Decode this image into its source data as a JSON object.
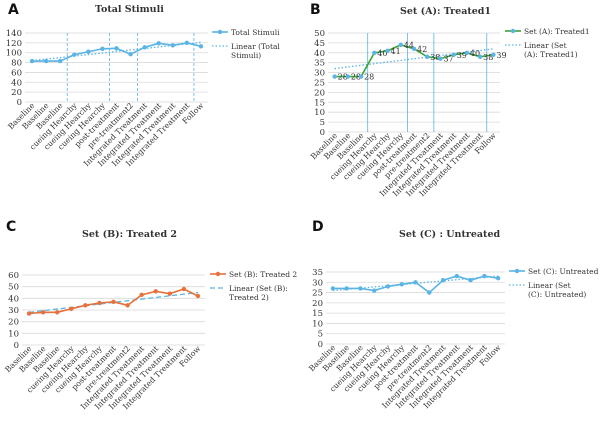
{
  "chart_data": [
    {
      "panel": "A",
      "type": "line",
      "title": "Total Stimuli",
      "categories": [
        "Baseline",
        "Baseline",
        "Baseline",
        "cueing Hearchy",
        "cueing Hearchy",
        "cueing Hearchy",
        "post-treatment",
        "pre-treatment2",
        "Integrated Treatment",
        "Integrated Treatment",
        "Integrated Treatment",
        "Integrated Treatment",
        "Follow"
      ],
      "series": [
        {
          "name": "Total Stimuli",
          "values": [
            83,
            83,
            83,
            96,
            102,
            108,
            109,
            97,
            111,
            119,
            115,
            120,
            113
          ],
          "color": "#5ab4e5"
        }
      ],
      "trendline": {
        "name": "Linear (Total Stimuli)",
        "start": 84,
        "end": 121,
        "color": "#5ab4e5"
      },
      "ylim": [
        0,
        140
      ],
      "yticks": [
        0,
        20,
        40,
        60,
        80,
        100,
        120,
        140
      ],
      "phase_lines_after_index": [
        2,
        5,
        7,
        11
      ],
      "legend_position": "right",
      "data_labels": false
    },
    {
      "panel": "B",
      "type": "line",
      "title": "Set (A): Treated1",
      "categories": [
        "Baseline",
        "Baseline",
        "Baseline",
        "cueing Hearchy",
        "cueing Hearchy",
        "cueing Hearchy",
        "post-treatment",
        "pre-treatment2",
        "Integrated Treatment",
        "Integrated Treatment",
        "Integrated Treatment",
        "Integrated Treatment",
        "Follow"
      ],
      "series": [
        {
          "name": "Set (A): Treated1",
          "values": [
            28,
            28,
            28,
            40,
            41,
            44,
            42,
            38,
            37,
            39,
            40,
            38,
            39
          ],
          "color": "#3aa33a"
        }
      ],
      "trendline": {
        "name": "Linear (Set (A): Treated1)",
        "start": 32,
        "end": 42,
        "color": "#5ab4e5"
      },
      "ylim": [
        0,
        50
      ],
      "yticks": [
        0,
        5,
        10,
        15,
        20,
        25,
        30,
        35,
        40,
        45,
        50
      ],
      "phase_lines_after_index": [
        2,
        5,
        7,
        11
      ],
      "legend_position": "right",
      "data_labels": true
    },
    {
      "panel": "C",
      "type": "line",
      "title": "Set (B): Treated 2",
      "categories": [
        "Baseline",
        "Baseline",
        "Baseline",
        "cueing Hearchy",
        "cueing Hearchy",
        "cueing Hearchy",
        "post-treatment",
        "pre-treatment2",
        "Integrated Treatment",
        "Integrated Treatment",
        "Integrated Treatment",
        "Integrated Treatment",
        "Follow"
      ],
      "series": [
        {
          "name": "Set (B): Treated 2",
          "values": [
            27,
            28,
            28,
            31,
            34,
            36,
            37,
            34,
            43,
            46,
            44,
            48,
            42
          ],
          "color": "#e8703a"
        }
      ],
      "trendline": {
        "name": "Linear (Set (B): Treated 2)",
        "start": 28,
        "end": 45,
        "color": "#5ab4e5"
      },
      "ylim": [
        0,
        60
      ],
      "yticks": [
        0,
        10,
        20,
        30,
        40,
        50,
        60
      ],
      "phase_lines_after_index": [],
      "legend_position": "right",
      "data_labels": false
    },
    {
      "panel": "D",
      "type": "line",
      "title": "Set (C) : Untreated",
      "categories": [
        "Baseline",
        "Baseline",
        "Baseline",
        "cueing Hearchy",
        "cueing Hearchy",
        "cueing Hearchy",
        "post-treatment",
        "pre-treatment2",
        "Integrated Treatment",
        "Integrated Treatment",
        "Integrated Treatment",
        "Integrated Treatment",
        "Follow"
      ],
      "series": [
        {
          "name": "Set (C): Untreated",
          "values": [
            27,
            27,
            27,
            26,
            28,
            29,
            30,
            25,
            31,
            33,
            31,
            33,
            32
          ],
          "color": "#5ab4e5"
        }
      ],
      "trendline": {
        "name": "Linear (Set (C): Untreated)",
        "start": 26,
        "end": 33,
        "color": "#5ab4e5"
      },
      "ylim": [
        0,
        35
      ],
      "yticks": [
        0,
        5,
        10,
        15,
        20,
        25,
        30,
        35
      ],
      "phase_lines_after_index": [],
      "legend_position": "right",
      "data_labels": false
    }
  ]
}
